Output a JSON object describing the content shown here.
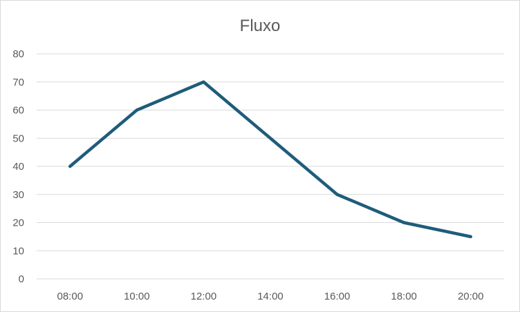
{
  "chart_data": {
    "type": "line",
    "title": "Fluxo",
    "xlabel": "",
    "ylabel": "",
    "categories": [
      "08:00",
      "10:00",
      "12:00",
      "14:00",
      "16:00",
      "18:00",
      "20:00"
    ],
    "series": [
      {
        "values": [
          40,
          60,
          70,
          50,
          30,
          20,
          15
        ],
        "color": "#1f5c7a"
      }
    ],
    "ylim": [
      0,
      80
    ],
    "yticks": [
      "0",
      "10",
      "20",
      "30",
      "40",
      "50",
      "60",
      "70",
      "80"
    ],
    "grid": true,
    "legend": "none"
  }
}
